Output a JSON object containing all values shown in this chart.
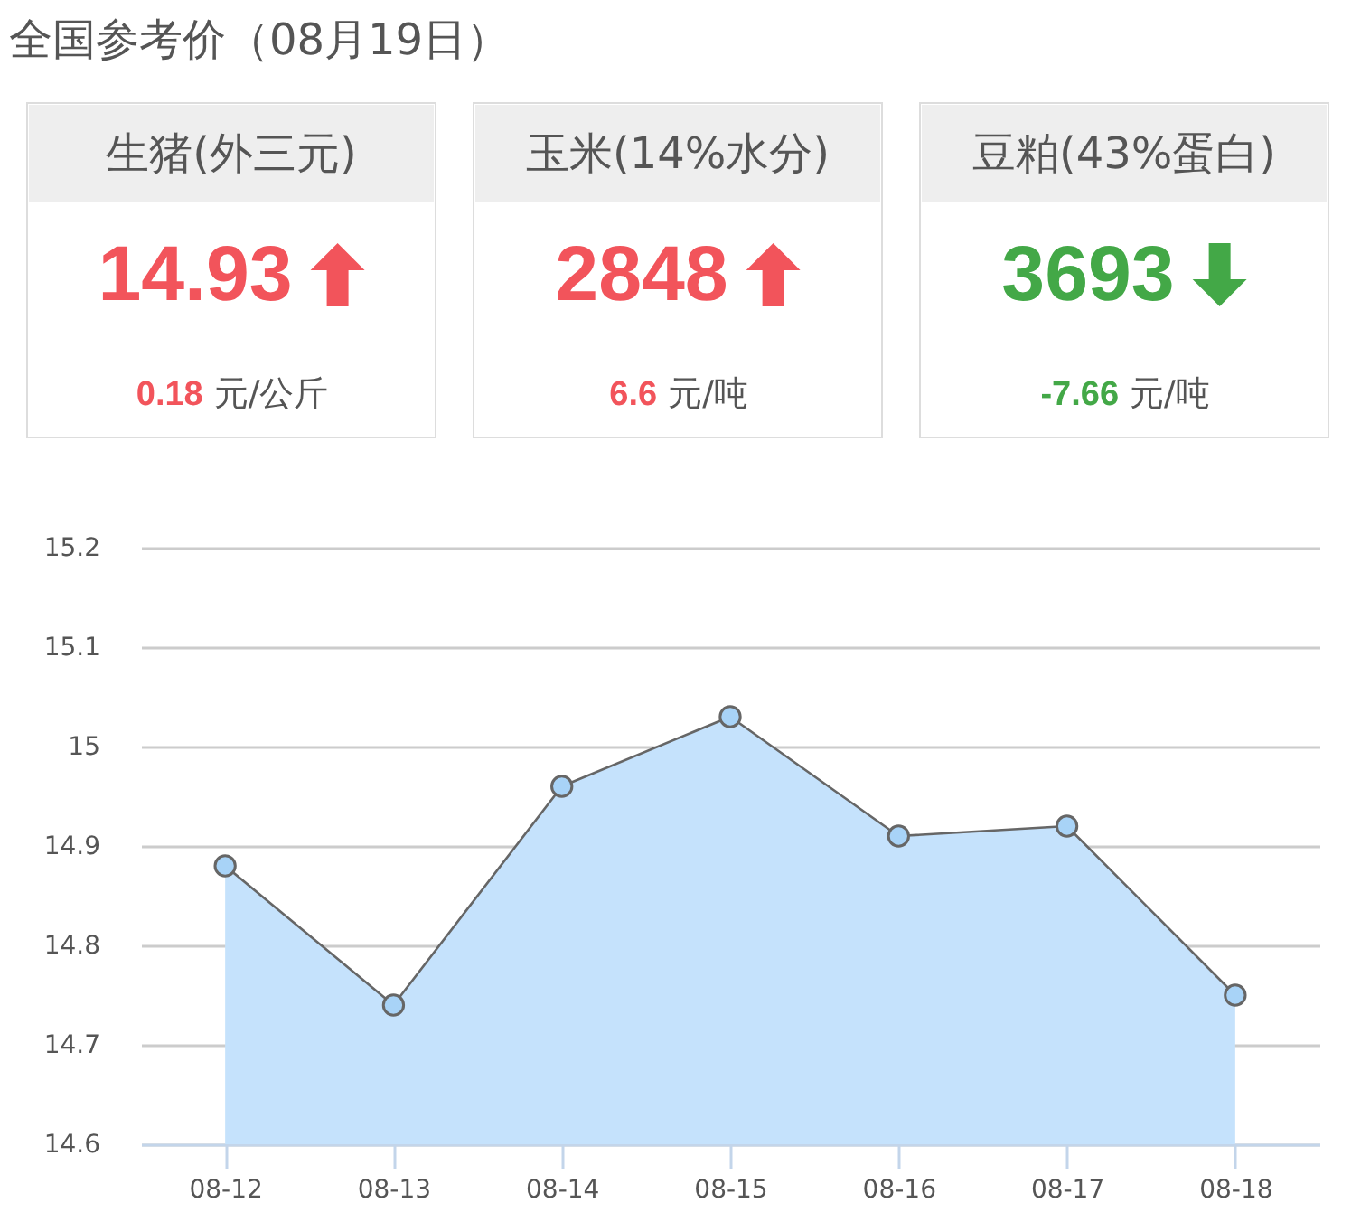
{
  "chart_data": [
    {
      "type": "other",
      "title": "全国参考价（08月19日）",
      "categories": [
        "生猪(外三元)",
        "玉米(14%水分)",
        "豆粕(43%蛋白)"
      ],
      "series": [
        {
          "values": [
            14.93,
            2848,
            3693
          ]
        },
        {
          "values": [
            0.18,
            6.6,
            -7.66
          ]
        }
      ],
      "annotations": [
        "元/公斤",
        "元/吨",
        "元/吨"
      ],
      "data_labels": true
    },
    {
      "type": "area",
      "categories": [
        "08-12",
        "08-13",
        "08-14",
        "08-15",
        "08-16",
        "08-17",
        "08-18"
      ],
      "values": [
        14.88,
        14.74,
        14.96,
        15.03,
        14.91,
        14.92,
        14.75
      ],
      "color": "#c5e2fc",
      "ylim": [
        14.6,
        15.2
      ],
      "yticks": [
        14.6,
        14.7,
        14.8,
        14.9,
        15,
        15.1,
        15.2
      ],
      "grid": "y",
      "marker": "circle",
      "line_style": "solid"
    }
  ]
}
